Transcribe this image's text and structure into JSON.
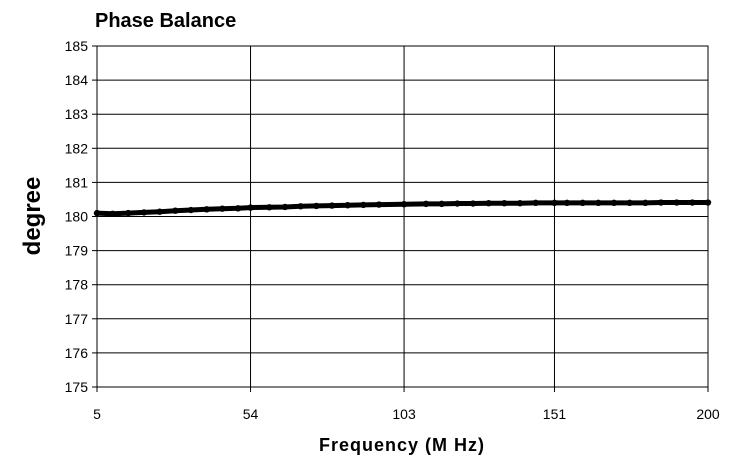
{
  "chart_data": {
    "type": "line",
    "title": "Phase Balance",
    "xlabel": "Frequency (M Hz)",
    "ylabel": "degree",
    "xlim": [
      5,
      200
    ],
    "ylim": [
      175,
      185
    ],
    "x_ticks": [
      "5",
      "54",
      "103",
      "151",
      "200"
    ],
    "y_ticks": [
      "185",
      "184",
      "183",
      "182",
      "181",
      "180",
      "179",
      "178",
      "177",
      "176",
      "175"
    ],
    "grid": true,
    "legend": "none",
    "series": [
      {
        "color": "#000000",
        "x": [
          5,
          10,
          15,
          20,
          25,
          30,
          35,
          40,
          45,
          50,
          54,
          60,
          65,
          70,
          75,
          80,
          85,
          90,
          95,
          103,
          110,
          115,
          120,
          125,
          130,
          135,
          140,
          145,
          151,
          155,
          160,
          165,
          170,
          175,
          180,
          185,
          190,
          195,
          200
        ],
        "values": [
          180.1,
          180.08,
          180.1,
          180.12,
          180.14,
          180.17,
          180.19,
          180.21,
          180.23,
          180.24,
          180.26,
          180.27,
          180.28,
          180.3,
          180.31,
          180.32,
          180.33,
          180.34,
          180.35,
          180.36,
          180.37,
          180.37,
          180.38,
          180.38,
          180.39,
          180.39,
          180.39,
          180.4,
          180.4,
          180.4,
          180.4,
          180.4,
          180.4,
          180.4,
          180.4,
          180.41,
          180.41,
          180.41,
          180.41
        ]
      }
    ]
  }
}
